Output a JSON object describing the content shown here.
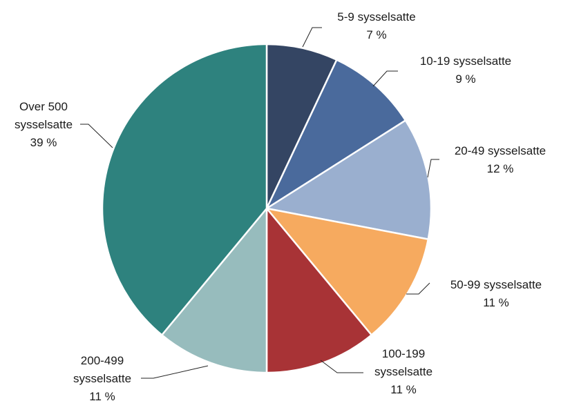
{
  "chart_data": {
    "type": "pie",
    "title": "",
    "legend": "none",
    "slices": [
      {
        "label": [
          "5-9 sysselsatte"
        ],
        "value_label": "7 %",
        "value": 7,
        "color": "#344563"
      },
      {
        "label": [
          "10-19 sysselsatte"
        ],
        "value_label": "9 %",
        "value": 9,
        "color": "#4a6a9c"
      },
      {
        "label": [
          "20-49 sysselsatte"
        ],
        "value_label": "12 %",
        "value": 12,
        "color": "#9aafcf"
      },
      {
        "label": [
          "50-99 sysselsatte"
        ],
        "value_label": "11 %",
        "value": 11,
        "color": "#f6aa5f"
      },
      {
        "label": [
          "100-199",
          "sysselsatte"
        ],
        "value_label": "11 %",
        "value": 11,
        "color": "#a83336"
      },
      {
        "label": [
          "200-499",
          "sysselsatte"
        ],
        "value_label": "11 %",
        "value": 11,
        "color": "#97bcbd"
      },
      {
        "label": [
          "Over 500",
          "sysselsatte"
        ],
        "value_label": "39 %",
        "value": 39,
        "color": "#2e827e"
      }
    ]
  }
}
